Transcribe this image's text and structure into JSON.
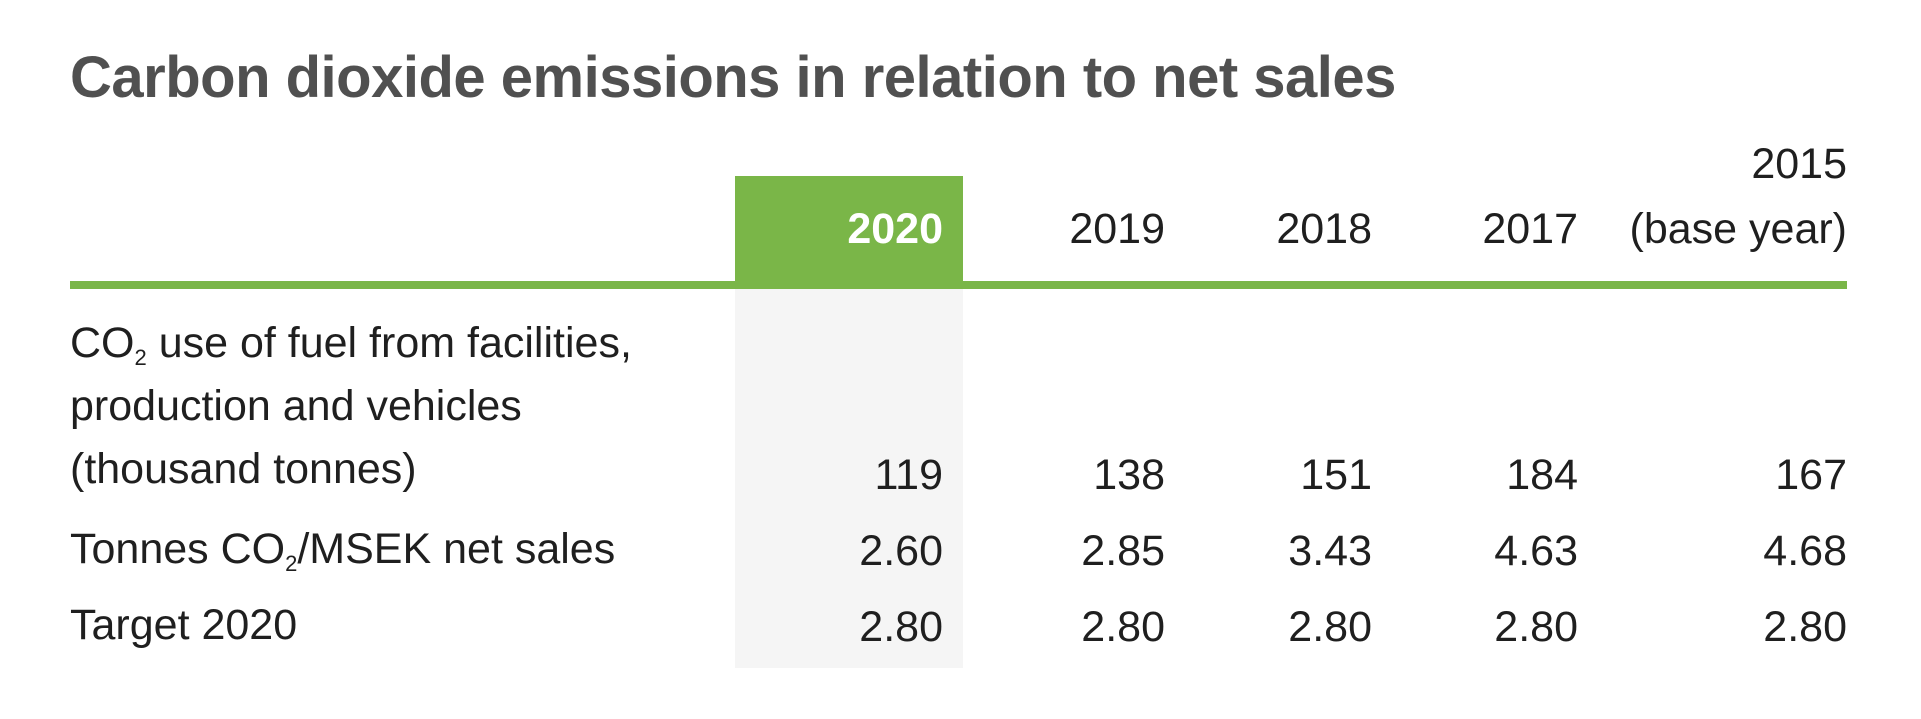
{
  "title": "Carbon dioxide emissions in relation to net sales",
  "columns": [
    {
      "label": "2020",
      "highlighted": true
    },
    {
      "label": "2019"
    },
    {
      "label": "2018"
    },
    {
      "label": "2017"
    },
    {
      "label_line1": "2015",
      "label_line2": "(base year)"
    }
  ],
  "rows": [
    {
      "label_line1_pre": "CO",
      "label_line1_sub": "2",
      "label_line1_post": " use of fuel from facilities,",
      "label_line2": "production and vehicles",
      "label_line3": "(thousand tonnes)",
      "values": [
        "119",
        "138",
        "151",
        "184",
        "167"
      ]
    },
    {
      "label_pre": "Tonnes CO",
      "label_sub": "2",
      "label_post": "/MSEK net sales",
      "values": [
        "2.60",
        "2.85",
        "3.43",
        "4.63",
        "4.68"
      ]
    },
    {
      "label": "Target 2020",
      "values": [
        "2.80",
        "2.80",
        "2.80",
        "2.80",
        "2.80"
      ]
    }
  ],
  "colors": {
    "accent_green": "#7ab648",
    "title_gray": "#505050",
    "highlight_bg": "#f5f5f5"
  }
}
